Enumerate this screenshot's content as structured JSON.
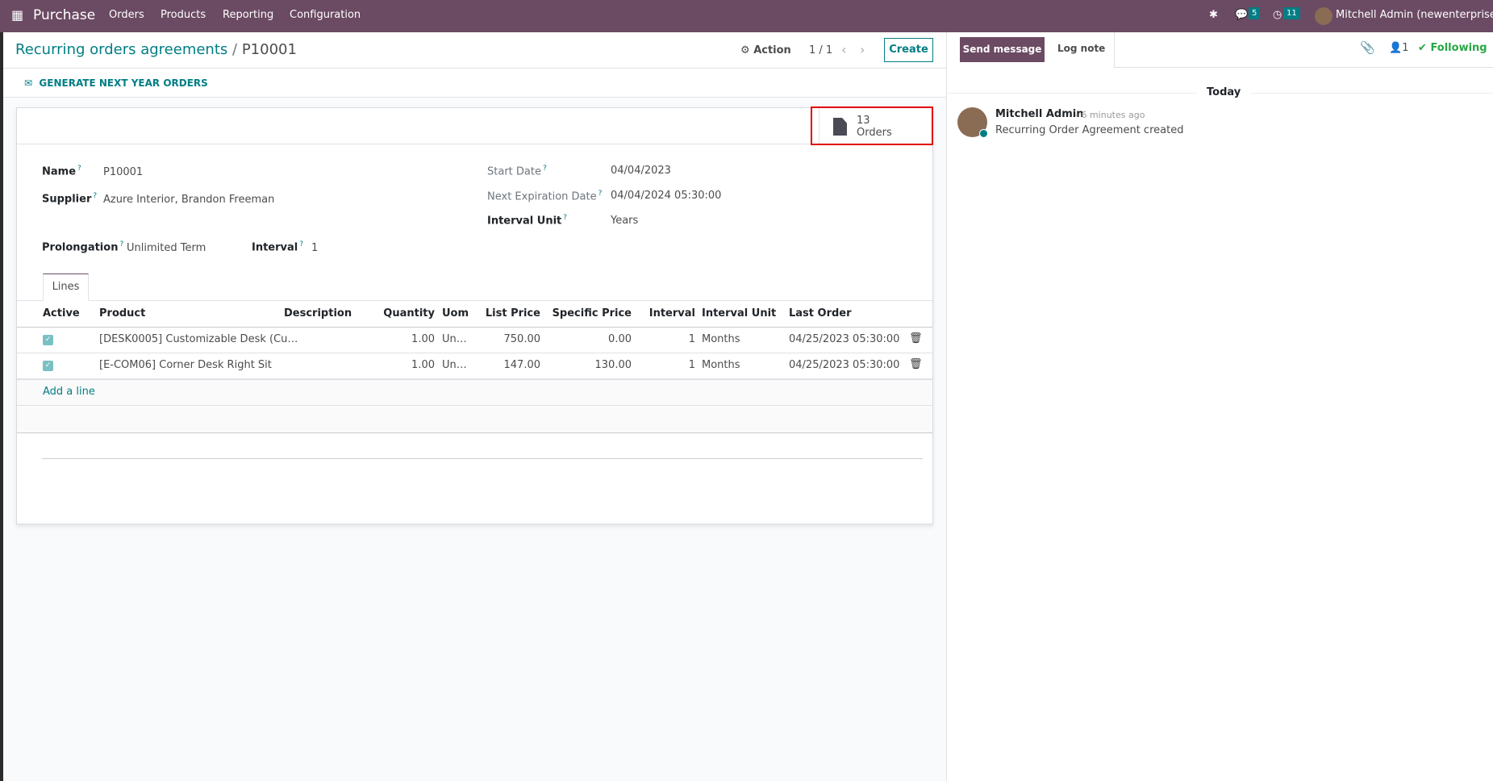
{
  "nav": {
    "app": "Purchase",
    "menu": [
      "Orders",
      "Products",
      "Reporting",
      "Configuration"
    ],
    "messages_count": "5",
    "activities_count": "11",
    "user": "Mitchell Admin (newenterprise)"
  },
  "control": {
    "breadcrumb_parent": "Recurring orders agreements",
    "breadcrumb_sep": "/",
    "breadcrumb_current": "P10001",
    "action": "Action",
    "pager": "1 / 1",
    "create": "Create"
  },
  "status": {
    "generate": "GENERATE NEXT YEAR ORDERS"
  },
  "stat": {
    "count": "13",
    "label": "Orders"
  },
  "form": {
    "name_label": "Name",
    "name": "P10001",
    "supplier_label": "Supplier",
    "supplier": "Azure Interior, Brandon Freeman",
    "start_label": "Start Date",
    "start": "04/04/2023",
    "next_label": "Next Expiration Date",
    "next": "04/04/2024 05:30:00",
    "unit_label": "Interval Unit",
    "unit": "Years",
    "prolong_label": "Prolongation",
    "prolong": "Unlimited Term",
    "interval_label": "Interval",
    "interval": "1",
    "help": "?"
  },
  "tabs": [
    "Lines"
  ],
  "table": {
    "headers": [
      "Active",
      "Product",
      "Description",
      "Quantity",
      "Uom",
      "List Price",
      "Specific Price",
      "Interval",
      "Interval Unit",
      "Last Order"
    ],
    "rows": [
      {
        "active": true,
        "product": "[DESK0005] Customizable Desk (Cu…",
        "description": "",
        "qty": "1.00",
        "uom": "Un…",
        "list": "750.00",
        "specific": "0.00",
        "interval": "1",
        "unit": "Months",
        "last": "04/25/2023 05:30:00"
      },
      {
        "active": true,
        "product": "[E-COM06] Corner Desk Right Sit",
        "description": "",
        "qty": "1.00",
        "uom": "Un…",
        "list": "147.00",
        "specific": "130.00",
        "interval": "1",
        "unit": "Months",
        "last": "04/25/2023 05:30:00"
      }
    ],
    "add_line": "Add a line"
  },
  "chatter": {
    "send": "Send message",
    "log": "Log note",
    "followers": "1",
    "following": "Following",
    "today": "Today",
    "messages": [
      {
        "author": "Mitchell Admin",
        "time": "- 6 minutes ago",
        "body": "Recurring Order Agreement created"
      }
    ]
  },
  "colors": {
    "brand": "#6b4a63",
    "accent": "#017e84",
    "highlight": "#e00000",
    "following": "#28a745"
  }
}
